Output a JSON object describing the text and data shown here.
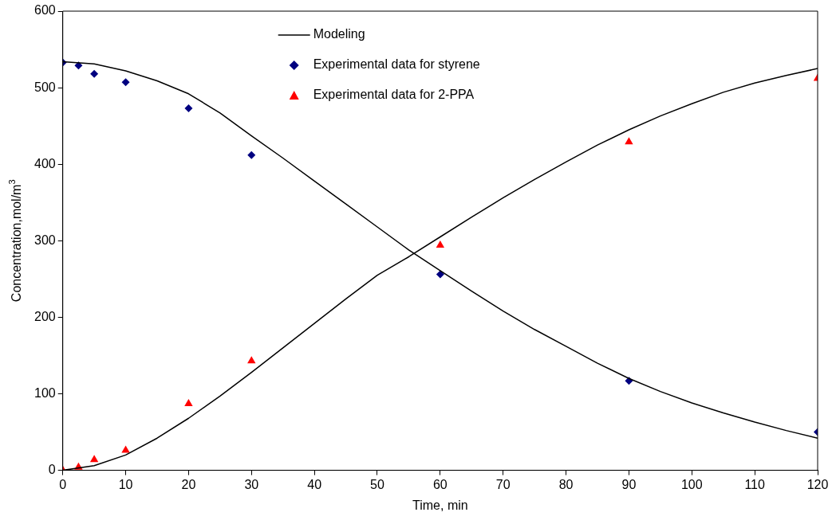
{
  "chart_data": {
    "type": "scatter",
    "xlabel": "Time, min",
    "ylabel": "Concentration,mol/m$^{3}$",
    "xlim": [
      0,
      120
    ],
    "xticks": [
      0,
      10,
      20,
      30,
      40,
      50,
      60,
      70,
      80,
      90,
      100,
      110,
      120
    ],
    "ylim": [
      0,
      600
    ],
    "yticks": [
      0,
      100,
      200,
      300,
      400,
      500,
      600
    ],
    "grid": false,
    "legend": "top",
    "marker": "diamond",
    "series": [
      {
        "name": "Modeling",
        "type": "line",
        "marker": "none",
        "line_style": "solid",
        "color": "#000000",
        "x": [
          0,
          5,
          10,
          15,
          20,
          25,
          30,
          35,
          40,
          45,
          50,
          55,
          60,
          65,
          70,
          75,
          80,
          85,
          90,
          95,
          100,
          105,
          110,
          115,
          120
        ],
        "values": [
          534,
          531,
          522,
          509,
          492,
          467,
          437,
          408,
          378,
          348,
          318,
          288,
          261,
          234,
          208,
          184,
          162,
          140,
          120,
          103,
          88,
          75,
          63,
          52,
          42
        ]
      },
      {
        "type": "line",
        "marker": "none",
        "line_style": "solid",
        "color": "#000000",
        "x": [
          0,
          5,
          10,
          15,
          20,
          25,
          30,
          35,
          40,
          45,
          50,
          55,
          60,
          65,
          70,
          75,
          80,
          85,
          90,
          95,
          100,
          105,
          110,
          115,
          120
        ],
        "values": [
          0,
          6,
          20,
          42,
          68,
          97,
          128,
          160,
          192,
          224,
          255,
          279,
          305,
          331,
          356,
          380,
          403,
          425,
          445,
          463,
          479,
          494,
          506,
          516,
          525
        ]
      },
      {
        "name": "Experimental data for styrene",
        "color": "#000080",
        "x": [
          0,
          2.5,
          5,
          10,
          20,
          30,
          60,
          90,
          120
        ],
        "values": [
          533,
          529,
          518,
          507,
          473,
          412,
          256,
          117,
          50
        ]
      },
      {
        "name": "Experimental data for 2-PPA",
        "marker": "triangle",
        "color": "#ff0000",
        "x": [
          0,
          2.5,
          5,
          10,
          20,
          30,
          60,
          90,
          120
        ],
        "values": [
          0,
          4,
          14,
          26,
          87,
          143,
          294,
          429,
          512
        ]
      }
    ]
  }
}
